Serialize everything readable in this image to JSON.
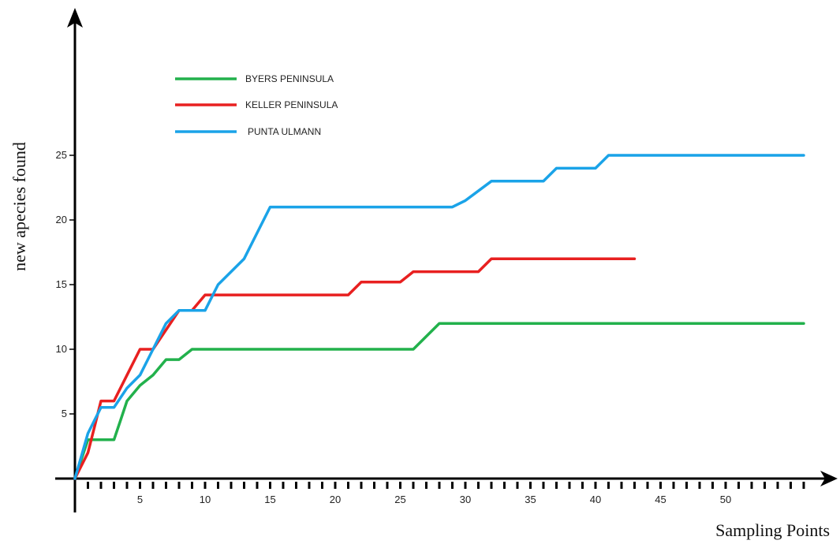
{
  "chart_data": {
    "type": "line",
    "title": "",
    "xlabel": "Sampling Points",
    "ylabel": "new apecies found",
    "xlim": [
      0,
      56
    ],
    "ylim": [
      0,
      25
    ],
    "x_tick_labels": [
      "5",
      "10",
      "15",
      "20",
      "25",
      "30",
      "35",
      "40",
      "45",
      "50"
    ],
    "x_tick_values": [
      5,
      10,
      15,
      20,
      25,
      30,
      35,
      40,
      45,
      50
    ],
    "y_tick_labels": [
      "5",
      "10",
      "15",
      "20",
      "25"
    ],
    "y_tick_values": [
      5,
      10,
      15,
      20,
      25
    ],
    "grid": false,
    "legend_position": "top-left",
    "series": [
      {
        "name": "BYERS PENINSULA",
        "color": "#22b14c",
        "points": [
          [
            0,
            0
          ],
          [
            1,
            3
          ],
          [
            3,
            3
          ],
          [
            3.5,
            4.5
          ],
          [
            4,
            6
          ],
          [
            5,
            7.2
          ],
          [
            6,
            8
          ],
          [
            7,
            9.2
          ],
          [
            8,
            9.2
          ],
          [
            9,
            10
          ],
          [
            10,
            10
          ],
          [
            20,
            10
          ],
          [
            26,
            10
          ],
          [
            27,
            11
          ],
          [
            28,
            12
          ],
          [
            56,
            12
          ]
        ]
      },
      {
        "name": "KELLER PENINSULA",
        "color": "#e82020",
        "points": [
          [
            0,
            0
          ],
          [
            1,
            2
          ],
          [
            1.5,
            4
          ],
          [
            2,
            6
          ],
          [
            3,
            6
          ],
          [
            4,
            8
          ],
          [
            5,
            10
          ],
          [
            6,
            10
          ],
          [
            7,
            11.5
          ],
          [
            8,
            13
          ],
          [
            9,
            13
          ],
          [
            10,
            14.2
          ],
          [
            21,
            14.2
          ],
          [
            22,
            15.2
          ],
          [
            25,
            15.2
          ],
          [
            26,
            16
          ],
          [
            31,
            16
          ],
          [
            32,
            17
          ],
          [
            43,
            17
          ]
        ]
      },
      {
        "name": "PUNTA ULMANN",
        "color": "#1aa3e8",
        "points": [
          [
            0,
            0
          ],
          [
            1,
            3.5
          ],
          [
            2,
            5.5
          ],
          [
            3,
            5.5
          ],
          [
            4,
            7
          ],
          [
            5,
            8
          ],
          [
            6,
            10
          ],
          [
            7,
            12
          ],
          [
            8,
            13
          ],
          [
            10,
            13
          ],
          [
            11,
            15
          ],
          [
            12,
            16
          ],
          [
            13,
            17
          ],
          [
            14,
            19
          ],
          [
            15,
            21
          ],
          [
            29,
            21
          ],
          [
            30,
            21.5
          ],
          [
            32,
            23
          ],
          [
            36,
            23
          ],
          [
            37,
            24
          ],
          [
            40,
            24
          ],
          [
            41,
            25
          ],
          [
            56,
            25
          ]
        ]
      }
    ]
  }
}
